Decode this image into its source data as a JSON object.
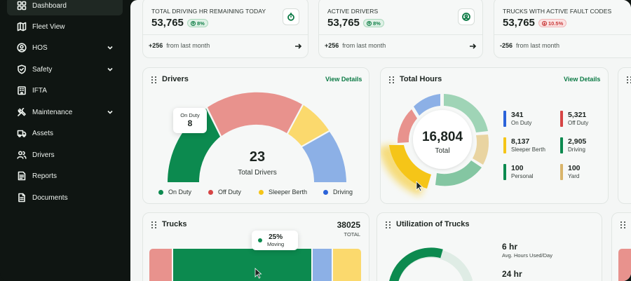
{
  "sidebar": {
    "items": [
      {
        "label": "Dashboard",
        "icon": "dashboard-icon",
        "active": true
      },
      {
        "label": "Fleet View",
        "icon": "map-icon"
      },
      {
        "label": "HOS",
        "icon": "user-circle-icon",
        "expandable": true
      },
      {
        "label": "Safety",
        "icon": "shield-icon",
        "expandable": true
      },
      {
        "label": "IFTA",
        "icon": "building-icon"
      },
      {
        "label": "Maintenance",
        "icon": "wrench-icon",
        "expandable": true
      },
      {
        "label": "Assets",
        "icon": "truck-icon"
      },
      {
        "label": "Drivers",
        "icon": "users-icon"
      },
      {
        "label": "Reports",
        "icon": "report-icon"
      },
      {
        "label": "Documents",
        "icon": "document-icon"
      }
    ]
  },
  "stats": [
    {
      "title": "TOTAL DRIVING HR REMAINING TODAY",
      "value": "53,765",
      "badge": "8%",
      "trend": "up",
      "icon": "stopwatch-icon",
      "delta": "+256",
      "delta_text": "from last month"
    },
    {
      "title": "ACTIVE DRIVERS",
      "value": "53,765",
      "badge": "8%",
      "trend": "up",
      "icon": "user-icon",
      "delta": "+256",
      "delta_text": "from last month"
    },
    {
      "title": "TRUCKS WITH ACTIVE FAULT CODES",
      "value": "53,765",
      "badge": "10.5%",
      "trend": "down",
      "icon": "",
      "delta": "-256",
      "delta_text": "from last month"
    }
  ],
  "drivers_panel": {
    "title": "Drivers",
    "view_details": "View Details",
    "total": "23",
    "total_label": "Total Drivers",
    "tooltip": {
      "label": "On Duty",
      "value": "8"
    },
    "legend": [
      {
        "label": "On Duty",
        "color": "#0c8a4f"
      },
      {
        "label": "Off Duty",
        "color": "#d64545"
      },
      {
        "label": "Sleeper Berth",
        "color": "#f5c518"
      },
      {
        "label": "Driving",
        "color": "#2b63d9"
      }
    ]
  },
  "hours_panel": {
    "title": "Total Hours",
    "view_details": "View Details",
    "total": "16,804",
    "total_label": "Total",
    "items": [
      {
        "value": "341",
        "label": "On Duty",
        "color": "#2b63d9"
      },
      {
        "value": "5,321",
        "label": "Off Duty",
        "color": "#d64545"
      },
      {
        "value": "8,137",
        "label": "Sleeper Berth",
        "color": "#f5c518"
      },
      {
        "value": "2,905",
        "label": "Driving",
        "color": "#0c8a4f"
      },
      {
        "value": "100",
        "label": "Personal",
        "color": "#0c8a4f"
      },
      {
        "value": "100",
        "label": "Yard",
        "color": "#d9b46a"
      }
    ]
  },
  "trucks_panel": {
    "title": "Trucks",
    "total": "38025",
    "total_label": "TOTAL",
    "tooltip": {
      "value": "25%",
      "label": "Moving"
    }
  },
  "utilization_panel": {
    "title": "Utilization of Trucks",
    "metrics": [
      {
        "value": "6 hr",
        "label": "Avg. Hours Used/Day"
      },
      {
        "value": "24 hr",
        "label": ""
      }
    ]
  },
  "colors": {
    "brand": "#0c7a45",
    "sidebar_bg": "#0f1512"
  }
}
